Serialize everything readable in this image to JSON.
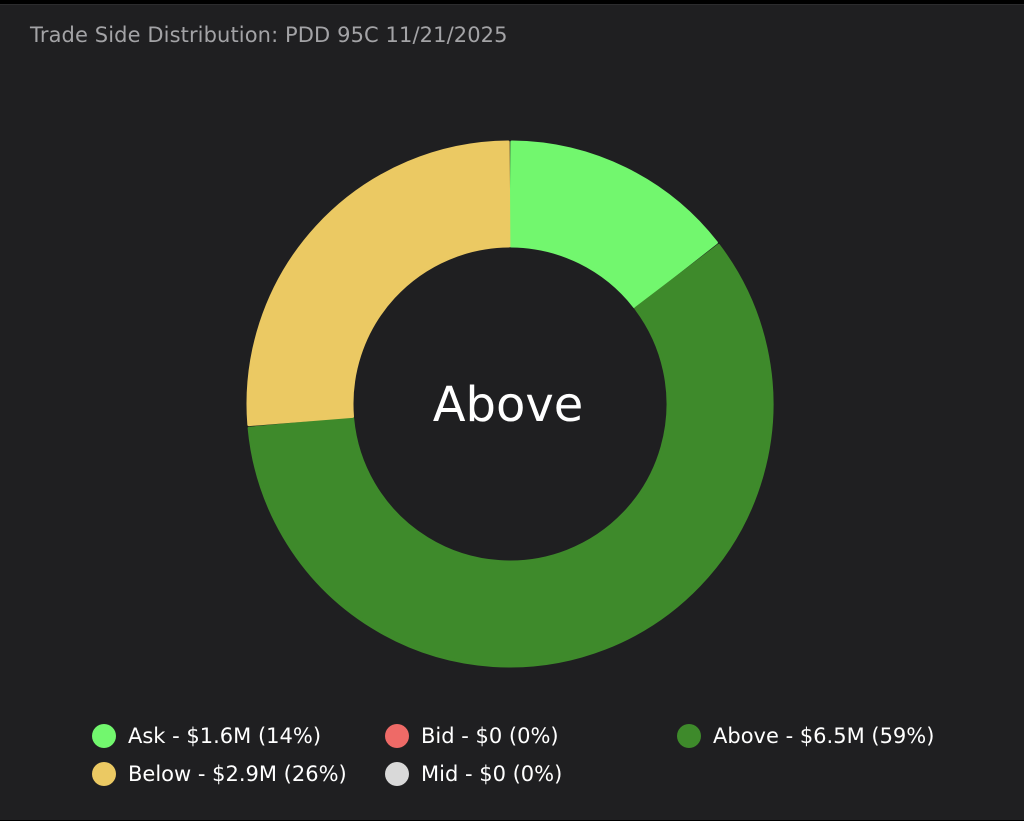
{
  "title": "Trade Side Distribution: PDD 95C 11/21/2025",
  "center_label": "Above",
  "chart_data": {
    "type": "pie",
    "style": "donut",
    "title": "Trade Side Distribution: PDD 95C 11/21/2025",
    "center_label": "Above",
    "legend_placement": "bottom",
    "slices": [
      {
        "name": "Ask",
        "value": 1.6,
        "percent": 14,
        "color": "#72f76e",
        "legend": "Ask - $1.6M (14%)"
      },
      {
        "name": "Bid",
        "value": 0,
        "percent": 0,
        "color": "#ee6a67",
        "legend": "Bid - $0 (0%)"
      },
      {
        "name": "Above",
        "value": 6.5,
        "percent": 59,
        "color": "#3e8a2b",
        "legend": "Above - $6.5M (59%)"
      },
      {
        "name": "Below",
        "value": 2.9,
        "percent": 26,
        "color": "#ebc963",
        "legend": "Below - $2.9M (26%)"
      },
      {
        "name": "Mid",
        "value": 0,
        "percent": 0,
        "color": "#d9d9d9",
        "legend": "Mid - $0 (0%)"
      }
    ]
  }
}
